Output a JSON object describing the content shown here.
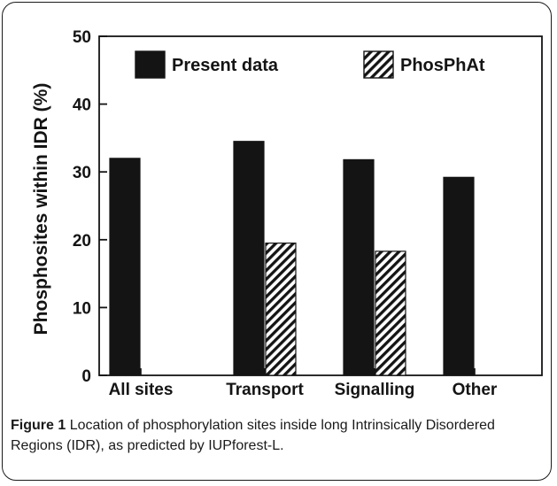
{
  "chart_data": {
    "type": "bar",
    "categories": [
      "All sites",
      "Transport",
      "Signalling",
      "Other"
    ],
    "series": [
      {
        "name": "Present data",
        "values": [
          32.0,
          34.5,
          31.8,
          29.2
        ],
        "pattern": "solid",
        "color": "#141414"
      },
      {
        "name": "PhosPhAt",
        "values": [
          null,
          19.5,
          18.3,
          null
        ],
        "pattern": "hatched",
        "color": "#141414"
      }
    ],
    "ylabel": "Phosphosites within IDR   (%)",
    "xlabel": "",
    "ylim": [
      0,
      50
    ],
    "yticks": [
      0,
      10,
      20,
      30,
      40,
      50
    ],
    "grid": false,
    "legend": "top"
  },
  "caption": {
    "label": "Figure 1",
    "text": "Location of phosphorylation sites inside long Intrinsically Disordered Regions (IDR), as predicted by IUPforest-L."
  }
}
